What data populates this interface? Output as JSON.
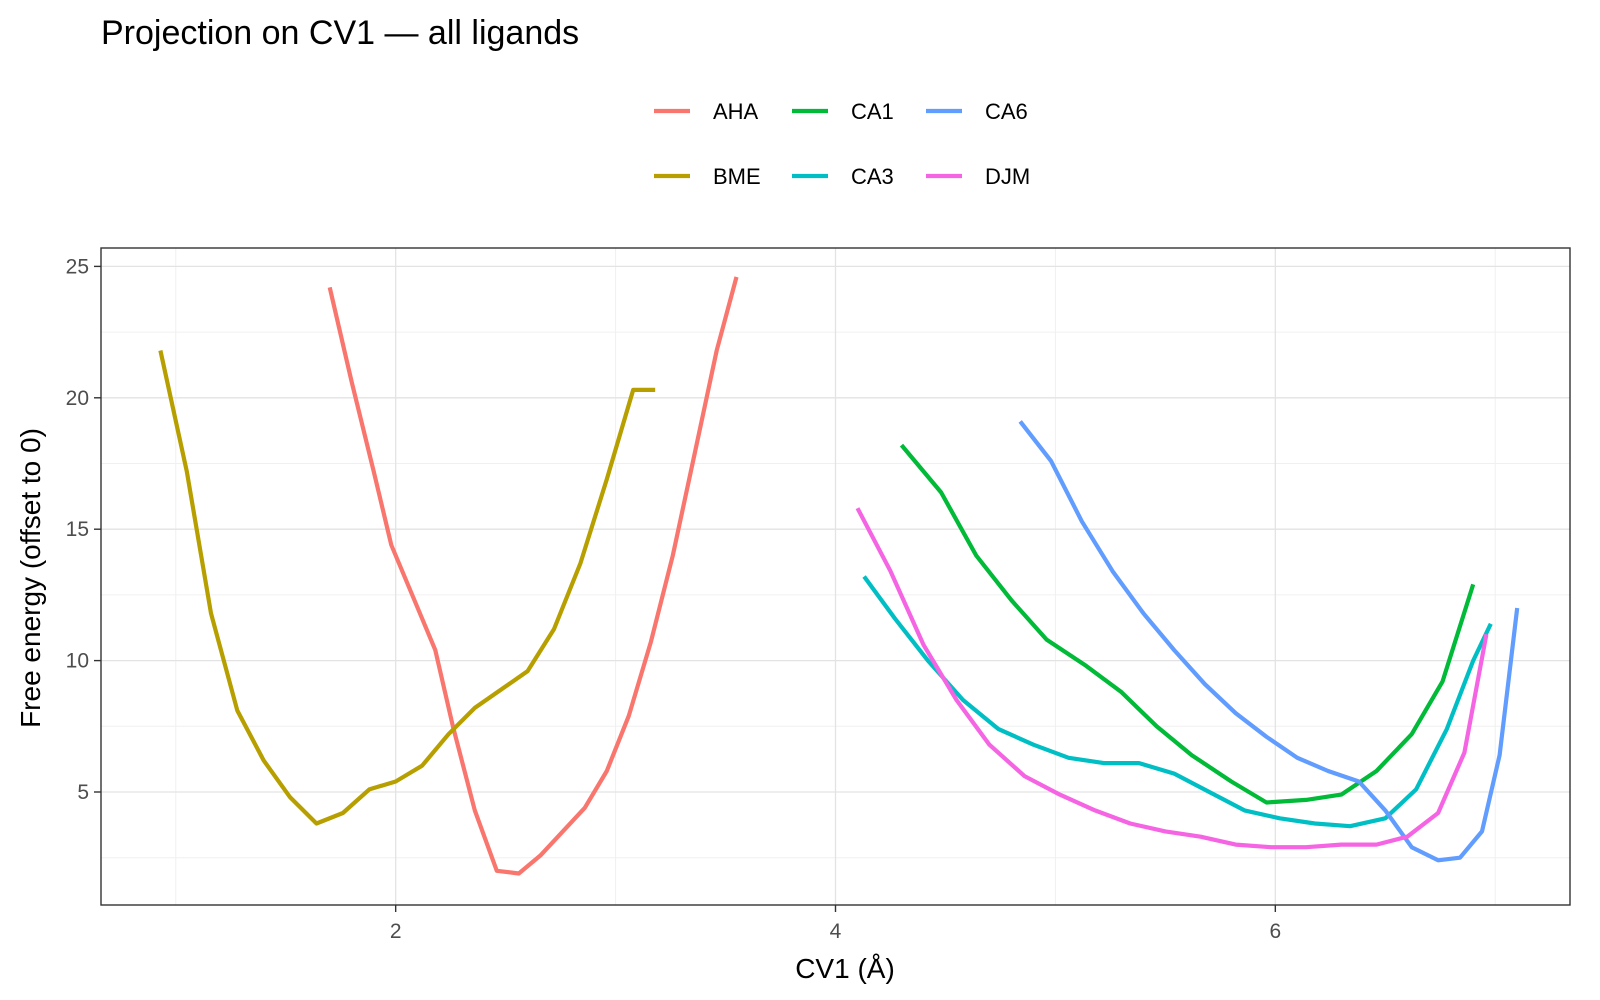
{
  "chart_data": {
    "type": "line",
    "title": "Projection on CV1 — all ligands",
    "xlabel": "CV1 (Å)",
    "ylabel": "Free energy (offset to 0)",
    "xlim": [
      0.66,
      7.34
    ],
    "ylim": [
      0.7,
      25.7
    ],
    "x_ticks": [
      2,
      4,
      6
    ],
    "x_tick_labels": [
      "2",
      "4",
      "6"
    ],
    "x_minor_ticks": [
      1,
      3,
      5,
      7
    ],
    "y_ticks": [
      5,
      10,
      15,
      20,
      25
    ],
    "y_tick_labels": [
      "5",
      "10",
      "15",
      "20",
      "25"
    ],
    "y_minor_ticks": [
      2.5,
      7.5,
      12.5,
      17.5,
      22.5
    ],
    "grid": true,
    "legend_position": "top",
    "series": [
      {
        "name": "AHA",
        "color": "#F8766D",
        "x": [
          1.7,
          1.8,
          1.9,
          1.98,
          2.08,
          2.18,
          2.26,
          2.36,
          2.46,
          2.56,
          2.66,
          2.76,
          2.86,
          2.96,
          3.06,
          3.16,
          3.26,
          3.36,
          3.46,
          3.55
        ],
        "y": [
          24.2,
          20.6,
          17.2,
          14.4,
          12.4,
          10.4,
          7.5,
          4.3,
          2.0,
          1.9,
          2.6,
          3.5,
          4.4,
          5.8,
          7.9,
          10.7,
          14.0,
          17.9,
          21.8,
          24.6
        ]
      },
      {
        "name": "BME",
        "color": "#B79F00",
        "x": [
          0.93,
          1.05,
          1.16,
          1.28,
          1.4,
          1.52,
          1.64,
          1.76,
          1.88,
          2.0,
          2.12,
          2.24,
          2.36,
          2.48,
          2.6,
          2.72,
          2.84,
          2.96,
          3.08,
          3.18
        ],
        "y": [
          21.8,
          17.2,
          11.8,
          8.1,
          6.2,
          4.8,
          3.8,
          4.2,
          5.1,
          5.4,
          6.0,
          7.2,
          8.2,
          8.9,
          9.6,
          11.2,
          13.7,
          16.9,
          20.3,
          20.3
        ]
      },
      {
        "name": "CA1",
        "color": "#00BA38",
        "x": [
          4.3,
          4.48,
          4.64,
          4.8,
          4.96,
          5.14,
          5.3,
          5.46,
          5.62,
          5.8,
          5.96,
          6.14,
          6.3,
          6.46,
          6.62,
          6.76,
          6.9
        ],
        "y": [
          18.2,
          16.4,
          14.0,
          12.3,
          10.8,
          9.8,
          8.8,
          7.5,
          6.4,
          5.4,
          4.6,
          4.7,
          4.9,
          5.8,
          7.2,
          9.2,
          12.9
        ]
      },
      {
        "name": "CA3",
        "color": "#00BFC4",
        "x": [
          4.13,
          4.27,
          4.42,
          4.58,
          4.74,
          4.9,
          5.06,
          5.22,
          5.38,
          5.54,
          5.7,
          5.86,
          6.02,
          6.18,
          6.34,
          6.5,
          6.64,
          6.78,
          6.9,
          6.98
        ],
        "y": [
          13.2,
          11.6,
          10.0,
          8.5,
          7.4,
          6.8,
          6.3,
          6.1,
          6.1,
          5.7,
          5.0,
          4.3,
          4.0,
          3.8,
          3.7,
          4.0,
          5.1,
          7.4,
          10.0,
          11.4
        ]
      },
      {
        "name": "CA6",
        "color": "#619CFF",
        "x": [
          4.84,
          4.98,
          5.12,
          5.26,
          5.4,
          5.54,
          5.68,
          5.82,
          5.96,
          6.1,
          6.24,
          6.38,
          6.5,
          6.62,
          6.74,
          6.84,
          6.94,
          7.02,
          7.1
        ],
        "y": [
          19.1,
          17.6,
          15.3,
          13.4,
          11.8,
          10.4,
          9.1,
          8.0,
          7.1,
          6.3,
          5.8,
          5.4,
          4.3,
          2.9,
          2.4,
          2.5,
          3.5,
          6.4,
          12.0
        ]
      },
      {
        "name": "DJM",
        "color": "#F564E3",
        "x": [
          4.1,
          4.25,
          4.4,
          4.55,
          4.7,
          4.86,
          5.02,
          5.18,
          5.34,
          5.5,
          5.66,
          5.82,
          5.98,
          6.14,
          6.3,
          6.46,
          6.6,
          6.74,
          6.86,
          6.96
        ],
        "y": [
          15.8,
          13.4,
          10.6,
          8.5,
          6.8,
          5.6,
          4.9,
          4.3,
          3.8,
          3.5,
          3.3,
          3.0,
          2.9,
          2.9,
          3.0,
          3.0,
          3.3,
          4.2,
          6.5,
          11.0
        ]
      }
    ]
  }
}
